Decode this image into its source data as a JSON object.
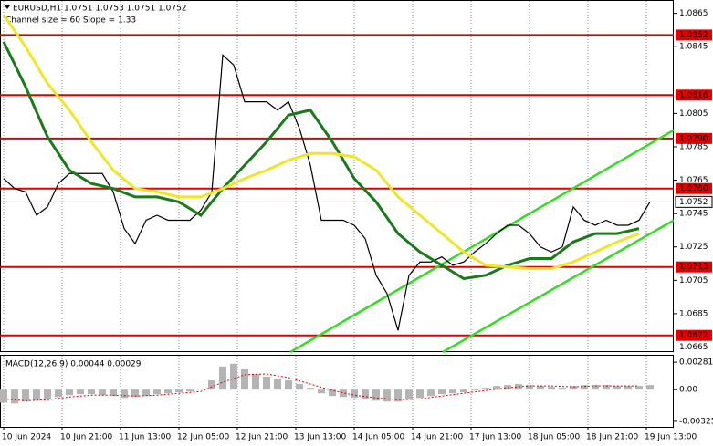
{
  "chart_data": [
    {
      "type": "line",
      "title": "EURUSD,H1  1.0751 1.0753 1.0751 1.0752",
      "subtitle": "Channel size = 60 Slope = 1.33",
      "xlim": [
        -1,
        183.5
      ],
      "ylim": [
        1.0662,
        1.0873
      ],
      "yticks": [
        1.0865,
        1.0845,
        1.0805,
        1.0785,
        1.0765,
        1.0745,
        1.0725,
        1.0705,
        1.0685,
        1.0665
      ],
      "xticks": [
        {
          "value": 0,
          "label": "10 Jun 2024"
        },
        {
          "value": 16,
          "label": "10 Jun 21:00"
        },
        {
          "value": 32,
          "label": "11 Jun 13:00"
        },
        {
          "value": 48,
          "label": "12 Jun 05:00"
        },
        {
          "value": 64,
          "label": "12 Jun 21:00"
        },
        {
          "value": 80,
          "label": "13 Jun 13:00"
        },
        {
          "value": 96,
          "label": "14 Jun 05:00"
        },
        {
          "value": 112,
          "label": "14 Jun 21:00"
        },
        {
          "value": 128,
          "label": "17 Jun 13:00"
        },
        {
          "value": 144,
          "label": "18 Jun 05:00"
        },
        {
          "value": 160,
          "label": "18 Jun 21:00"
        },
        {
          "value": 176,
          "label": "19 Jun 13:00"
        }
      ],
      "grid": true,
      "series": [
        {
          "color": "#000000",
          "x": [
            0,
            3,
            6,
            9,
            12,
            15,
            18,
            21,
            24,
            27,
            30,
            33,
            36,
            39,
            42,
            45,
            48,
            51,
            54,
            57,
            60,
            63,
            66,
            69,
            72,
            75,
            78,
            81,
            84,
            87,
            90,
            93,
            96,
            99,
            102,
            105,
            108,
            111,
            114,
            117,
            120,
            123,
            126,
            129,
            132,
            135,
            138,
            141,
            144,
            147,
            150,
            153,
            156,
            159,
            162,
            165,
            168,
            171,
            174,
            177
          ],
          "values": [
            1.0766,
            1.076,
            1.0758,
            1.0744,
            1.0749,
            1.0763,
            1.0769,
            1.0769,
            1.0769,
            1.0769,
            1.0758,
            1.0736,
            1.0727,
            1.0741,
            1.0744,
            1.0741,
            1.0741,
            1.0741,
            1.0747,
            1.0758,
            1.084,
            1.0834,
            1.0812,
            1.0812,
            1.0812,
            1.0807,
            1.0812,
            1.0796,
            1.0774,
            1.0741,
            1.0741,
            1.0741,
            1.0738,
            1.073,
            1.0708,
            1.0697,
            1.0675,
            1.0708,
            1.0716,
            1.0716,
            1.0719,
            1.0714,
            1.0716,
            1.0722,
            1.0727,
            1.0733,
            1.0738,
            1.0738,
            1.0733,
            1.0725,
            1.0722,
            1.0725,
            1.0749,
            1.0741,
            1.0738,
            1.0741,
            1.0738,
            1.0738,
            1.0741,
            1.0752
          ]
        },
        {
          "color": "#1a7a1a",
          "x": [
            0,
            6,
            12,
            18,
            24,
            30,
            36,
            42,
            48,
            54,
            60,
            66,
            72,
            78,
            84,
            90,
            96,
            102,
            108,
            114,
            120,
            126,
            132,
            138,
            144,
            150,
            156,
            162,
            168,
            174
          ],
          "values": [
            1.0848,
            1.0821,
            1.0791,
            1.0771,
            1.0763,
            1.076,
            1.0755,
            1.0755,
            1.0752,
            1.0744,
            1.076,
            1.0774,
            1.0788,
            1.0804,
            1.0807,
            1.0788,
            1.0766,
            1.0752,
            1.0733,
            1.0722,
            1.0714,
            1.0706,
            1.0708,
            1.0714,
            1.0718,
            1.0718,
            1.0728,
            1.0733,
            1.0733,
            1.0736
          ]
        },
        {
          "color": "#f0e628",
          "x": [
            0,
            6,
            12,
            18,
            24,
            30,
            36,
            42,
            48,
            54,
            60,
            66,
            72,
            78,
            84,
            90,
            96,
            102,
            108,
            114,
            120,
            126,
            132,
            138,
            144,
            150,
            156,
            162,
            168,
            174
          ],
          "values": [
            1.0864,
            1.0845,
            1.0823,
            1.0807,
            1.0788,
            1.0771,
            1.076,
            1.0758,
            1.0755,
            1.0755,
            1.076,
            1.0766,
            1.0771,
            1.0777,
            1.0781,
            1.0781,
            1.0779,
            1.0771,
            1.0755,
            1.0744,
            1.0733,
            1.0722,
            1.0714,
            1.0713,
            1.0712,
            1.0712,
            1.0716,
            1.0722,
            1.0728,
            1.0733
          ]
        }
      ],
      "channel_color": "#33dd22",
      "channel": [
        {
          "x": [
            78.5,
            183.5
          ],
          "values": [
            1.0662,
            1.0795
          ]
        },
        {
          "x": [
            120.25,
            183.5
          ],
          "values": [
            1.0662,
            1.0741
          ]
        }
      ],
      "level_color": "#e00000",
      "levels": [
        1.0852,
        1.0816,
        {
          "value": 1.079,
          "label": "1.0790"
        },
        {
          "value": 1.076,
          "label": "1.0760"
        },
        1.0713,
        1.0672
      ],
      "current_price": 1.0752
    },
    {
      "type": "bar",
      "title": "MACD(12,26,9) 0.00044 0.00029",
      "ylim": [
        -0.00382,
        0.00357
      ],
      "yticks": [
        0.00281,
        {
          "value": 0,
          "label": "0.00"
        },
        -0.00325
      ],
      "color": "#b4b4b4",
      "x": [
        0,
        3,
        6,
        9,
        12,
        15,
        18,
        21,
        24,
        27,
        30,
        33,
        36,
        39,
        42,
        45,
        48,
        51,
        54,
        57,
        60,
        63,
        66,
        69,
        72,
        75,
        78,
        81,
        84,
        87,
        90,
        93,
        96,
        99,
        102,
        105,
        108,
        111,
        114,
        117,
        120,
        123,
        126,
        129,
        132,
        135,
        138,
        141,
        144,
        147,
        150,
        153,
        156,
        159,
        162,
        165,
        168,
        171,
        174,
        177
      ],
      "values": [
        -0.00133,
        -0.00142,
        -0.00123,
        -0.00114,
        -0.00095,
        -0.00076,
        -0.00057,
        -0.00047,
        -0.00047,
        -0.00057,
        -0.00066,
        -0.00085,
        -0.00076,
        -0.00066,
        -0.00047,
        -0.00038,
        -0.00028,
        -0.00019,
        2e-05,
        0.00095,
        0.00237,
        0.00265,
        0.00208,
        0.00161,
        0.00133,
        0.00114,
        0.00095,
        0.00057,
        0.00019,
        -0.00038,
        -0.00066,
        -0.00076,
        -0.00085,
        -0.00095,
        -0.00114,
        -0.00123,
        -0.00123,
        -0.00104,
        -0.00085,
        -0.00066,
        -0.00047,
        -0.00038,
        -0.00028,
        -9e-05,
        0.00019,
        0.00038,
        0.00047,
        0.00057,
        0.00047,
        0.00038,
        0.00028,
        0.00019,
        0.00038,
        0.00047,
        0.00047,
        0.00047,
        0.00038,
        0.00038,
        0.00038,
        0.00047
      ],
      "signal": {
        "color": "#e00000",
        "x": [
          0,
          6,
          12,
          18,
          24,
          30,
          36,
          42,
          48,
          54,
          60,
          66,
          72,
          78,
          84,
          90,
          96,
          102,
          108,
          114,
          120,
          126,
          132,
          138,
          144,
          150,
          156,
          162,
          168,
          174
        ],
        "values": [
          -0.00095,
          -0.00114,
          -0.00104,
          -0.00076,
          -0.00057,
          -0.00057,
          -0.00066,
          -0.00057,
          -0.00038,
          -0.00019,
          0.00076,
          0.00152,
          0.00161,
          0.00123,
          0.00057,
          -9e-05,
          -0.00057,
          -0.00085,
          -0.00104,
          -0.00095,
          -0.00066,
          -0.00038,
          -9e-05,
          0.00019,
          0.00038,
          0.00038,
          0.00028,
          0.00038,
          0.00038,
          0.00038
        ]
      }
    }
  ]
}
